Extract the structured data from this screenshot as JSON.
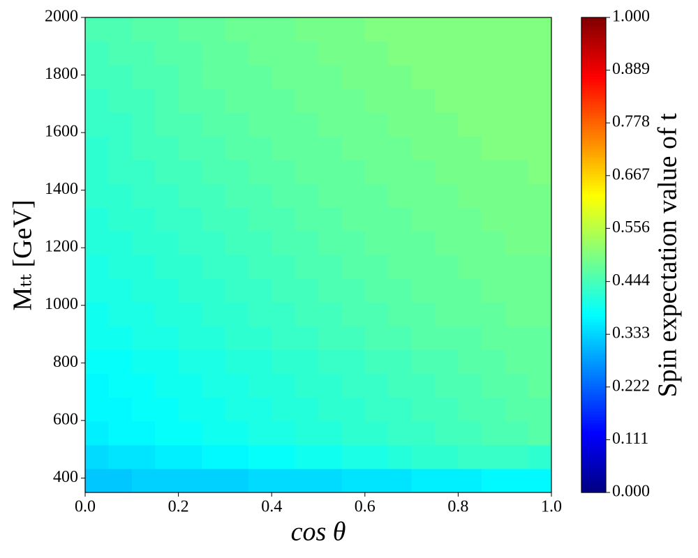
{
  "chart_data": {
    "type": "heatmap",
    "xlabel": "cos θ",
    "ylabel": "Mₜₜ [GeV]",
    "colorbar_label": "Spin expectation value of t",
    "colormap": "jet",
    "xlim": [
      0,
      1
    ],
    "ylim": [
      350,
      2000
    ],
    "xticks": [
      {
        "value": 0,
        "label": "0.0"
      },
      0.2,
      0.4,
      0.6,
      0.8,
      {
        "value": 1,
        "label": "1.0"
      }
    ],
    "yticks": [
      400,
      600,
      800,
      1000,
      1200,
      1400,
      1600,
      1800,
      2000
    ],
    "clim": [
      0,
      1
    ],
    "cticks": [
      {
        "value": 0,
        "label": "0.000"
      },
      0.111,
      0.222,
      0.333,
      0.444,
      0.556,
      0.667,
      0.778,
      0.889,
      {
        "value": 1,
        "label": "1.000"
      }
    ],
    "xbins": [
      0,
      0.05,
      0.1,
      0.15,
      0.2,
      0.25,
      0.3,
      0.35,
      0.4,
      0.45,
      0.5,
      0.55,
      0.6,
      0.65,
      0.7,
      0.75,
      0.8,
      0.85,
      0.9,
      0.95,
      1
    ],
    "ybins": [
      350,
      432.5,
      515,
      597.5,
      680,
      762.5,
      845,
      927.5,
      1010,
      1092.5,
      1175,
      1257.5,
      1340,
      1422.5,
      1505,
      1587.5,
      1670,
      1752.5,
      1835,
      1917.5,
      2000
    ],
    "values": [
      [
        0.32,
        0.32,
        0.33,
        0.33,
        0.33,
        0.33,
        0.33,
        0.34,
        0.34,
        0.34,
        0.34,
        0.35,
        0.35,
        0.35,
        0.36,
        0.36,
        0.36,
        0.37,
        0.37,
        0.37
      ],
      [
        0.34,
        0.35,
        0.35,
        0.36,
        0.36,
        0.37,
        0.37,
        0.38,
        0.38,
        0.39,
        0.39,
        0.4,
        0.4,
        0.41,
        0.42,
        0.42,
        0.43,
        0.43,
        0.43,
        0.42
      ],
      [
        0.36,
        0.37,
        0.37,
        0.38,
        0.38,
        0.39,
        0.39,
        0.4,
        0.4,
        0.41,
        0.41,
        0.42,
        0.42,
        0.43,
        0.43,
        0.44,
        0.44,
        0.45,
        0.45,
        0.46
      ],
      [
        0.37,
        0.37,
        0.38,
        0.38,
        0.39,
        0.39,
        0.4,
        0.4,
        0.41,
        0.41,
        0.42,
        0.42,
        0.43,
        0.43,
        0.44,
        0.44,
        0.45,
        0.45,
        0.46,
        0.46
      ],
      [
        0.37,
        0.38,
        0.38,
        0.39,
        0.39,
        0.4,
        0.4,
        0.41,
        0.41,
        0.42,
        0.42,
        0.43,
        0.43,
        0.44,
        0.44,
        0.45,
        0.45,
        0.46,
        0.46,
        0.47
      ],
      [
        0.38,
        0.38,
        0.39,
        0.39,
        0.4,
        0.4,
        0.41,
        0.41,
        0.42,
        0.42,
        0.43,
        0.43,
        0.44,
        0.44,
        0.45,
        0.45,
        0.46,
        0.46,
        0.47,
        0.47
      ],
      [
        0.39,
        0.39,
        0.4,
        0.4,
        0.41,
        0.41,
        0.42,
        0.42,
        0.43,
        0.43,
        0.44,
        0.44,
        0.45,
        0.45,
        0.46,
        0.46,
        0.46,
        0.47,
        0.47,
        0.47
      ],
      [
        0.39,
        0.4,
        0.4,
        0.41,
        0.41,
        0.42,
        0.42,
        0.43,
        0.43,
        0.44,
        0.44,
        0.45,
        0.45,
        0.46,
        0.46,
        0.47,
        0.47,
        0.47,
        0.48,
        0.48
      ],
      [
        0.4,
        0.4,
        0.41,
        0.41,
        0.42,
        0.42,
        0.43,
        0.43,
        0.44,
        0.44,
        0.45,
        0.45,
        0.46,
        0.46,
        0.47,
        0.47,
        0.47,
        0.48,
        0.48,
        0.48
      ],
      [
        0.4,
        0.41,
        0.41,
        0.42,
        0.42,
        0.43,
        0.43,
        0.44,
        0.44,
        0.45,
        0.45,
        0.46,
        0.46,
        0.47,
        0.47,
        0.47,
        0.48,
        0.48,
        0.48,
        0.48
      ],
      [
        0.41,
        0.41,
        0.42,
        0.42,
        0.43,
        0.43,
        0.44,
        0.44,
        0.45,
        0.45,
        0.46,
        0.46,
        0.47,
        0.47,
        0.47,
        0.48,
        0.48,
        0.48,
        0.49,
        0.49
      ],
      [
        0.41,
        0.42,
        0.42,
        0.43,
        0.43,
        0.44,
        0.44,
        0.45,
        0.45,
        0.46,
        0.46,
        0.47,
        0.47,
        0.47,
        0.48,
        0.48,
        0.48,
        0.49,
        0.49,
        0.49
      ],
      [
        0.42,
        0.42,
        0.43,
        0.43,
        0.44,
        0.44,
        0.45,
        0.45,
        0.46,
        0.46,
        0.47,
        0.47,
        0.47,
        0.48,
        0.48,
        0.48,
        0.49,
        0.49,
        0.49,
        0.49
      ],
      [
        0.42,
        0.43,
        0.43,
        0.44,
        0.44,
        0.45,
        0.45,
        0.46,
        0.46,
        0.47,
        0.47,
        0.47,
        0.48,
        0.48,
        0.48,
        0.49,
        0.49,
        0.49,
        0.49,
        0.5
      ],
      [
        0.42,
        0.43,
        0.44,
        0.44,
        0.45,
        0.45,
        0.46,
        0.46,
        0.47,
        0.47,
        0.47,
        0.48,
        0.48,
        0.48,
        0.49,
        0.49,
        0.49,
        0.5,
        0.5,
        0.5
      ],
      [
        0.43,
        0.43,
        0.44,
        0.45,
        0.45,
        0.46,
        0.46,
        0.47,
        0.47,
        0.47,
        0.48,
        0.48,
        0.48,
        0.49,
        0.49,
        0.49,
        0.5,
        0.5,
        0.5,
        0.5
      ],
      [
        0.43,
        0.44,
        0.44,
        0.45,
        0.46,
        0.46,
        0.47,
        0.47,
        0.47,
        0.48,
        0.48,
        0.48,
        0.49,
        0.49,
        0.49,
        0.5,
        0.5,
        0.5,
        0.5,
        0.5
      ],
      [
        0.44,
        0.44,
        0.45,
        0.45,
        0.46,
        0.47,
        0.47,
        0.47,
        0.48,
        0.48,
        0.48,
        0.49,
        0.49,
        0.49,
        0.5,
        0.5,
        0.5,
        0.5,
        0.5,
        0.5
      ],
      [
        0.44,
        0.45,
        0.45,
        0.46,
        0.46,
        0.47,
        0.47,
        0.48,
        0.48,
        0.48,
        0.49,
        0.49,
        0.49,
        0.5,
        0.5,
        0.5,
        0.5,
        0.5,
        0.5,
        0.5
      ],
      [
        0.45,
        0.45,
        0.46,
        0.46,
        0.47,
        0.47,
        0.48,
        0.48,
        0.48,
        0.49,
        0.49,
        0.49,
        0.5,
        0.5,
        0.5,
        0.5,
        0.5,
        0.5,
        0.5,
        0.5
      ]
    ]
  }
}
